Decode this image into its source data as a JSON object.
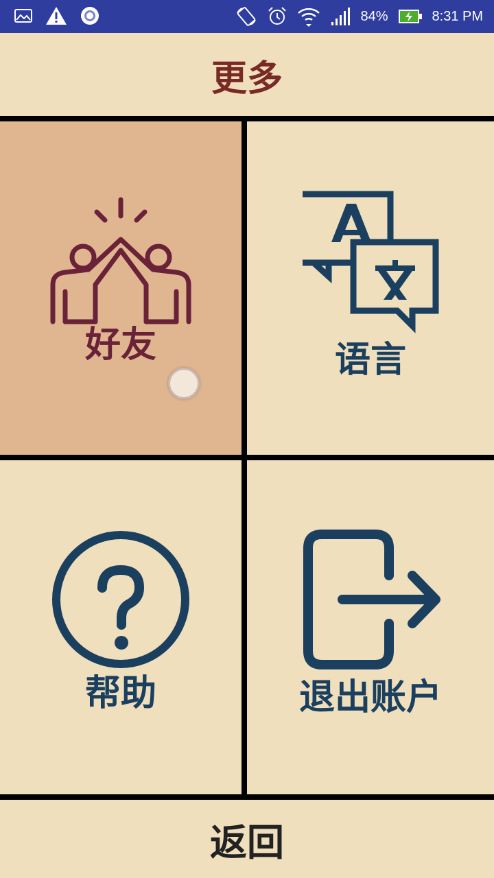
{
  "status_bar": {
    "battery": "84%",
    "time": "8:31 PM",
    "icons": [
      "gallery-icon",
      "warning-icon",
      "sync-icon",
      "rotate-icon",
      "alarm-icon",
      "wifi-icon",
      "signal-icon",
      "battery-charging-icon"
    ]
  },
  "header": {
    "title": "更多"
  },
  "tiles": [
    {
      "label": "好友",
      "icon": "high-five-icon",
      "selected": true
    },
    {
      "label": "语言",
      "icon": "translate-icon",
      "selected": false
    },
    {
      "label": "帮助",
      "icon": "question-icon",
      "selected": false
    },
    {
      "label": "退出账户",
      "icon": "logout-icon",
      "selected": false
    }
  ],
  "footer": {
    "label": "返回"
  },
  "colors": {
    "status_bar": "#2e3d9e",
    "background": "#f0dfbd",
    "selected_tile": "#e0b690",
    "title": "#7a2a26",
    "friends": "#6a2239",
    "icon_blue": "#1b3f5e",
    "footer_text": "#222222",
    "divider": "#000000"
  }
}
